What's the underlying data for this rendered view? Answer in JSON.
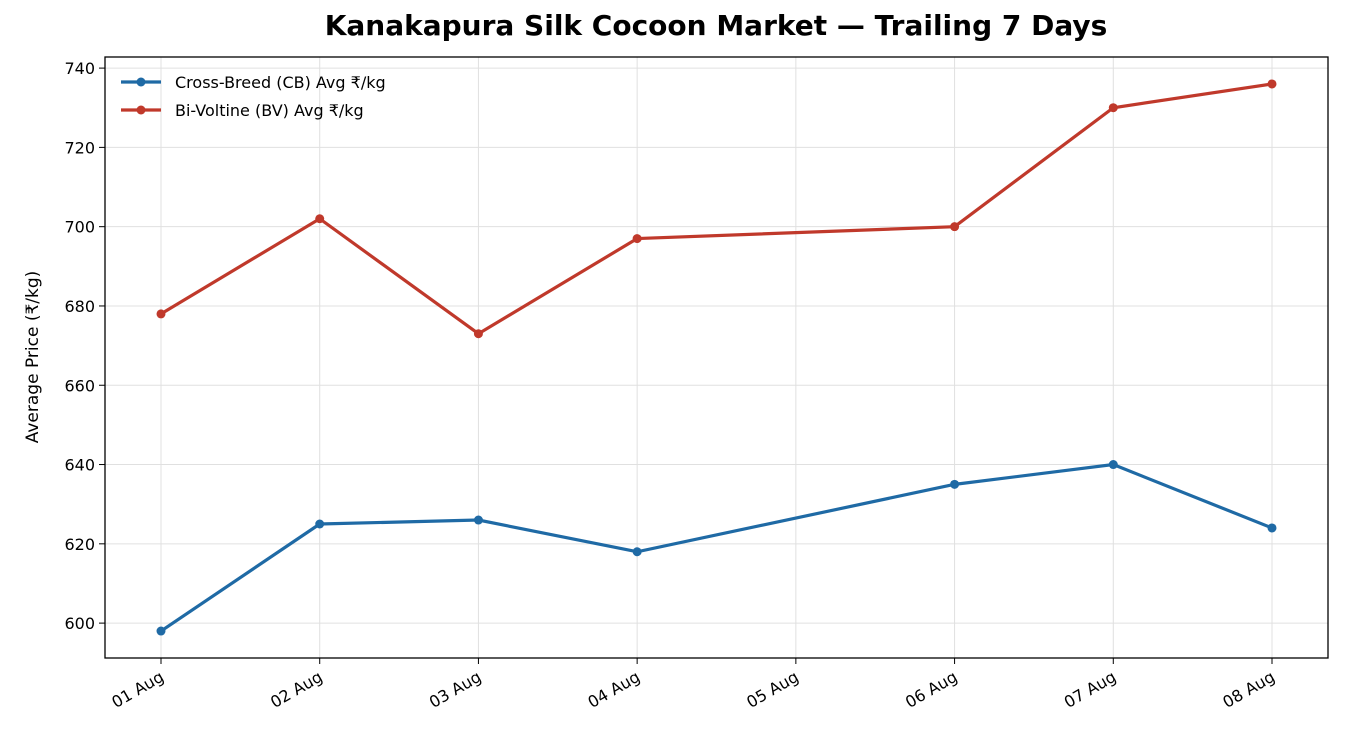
{
  "chart_data": {
    "type": "line",
    "title": "Kanakapura Silk Cocoon Market — Trailing 7 Days",
    "ylabel": "Average Price (₹/kg)",
    "x": [
      "01 Aug",
      "02 Aug",
      "03 Aug",
      "04 Aug",
      "06 Aug",
      "07 Aug",
      "08 Aug"
    ],
    "xticks": [
      "01 Aug",
      "02 Aug",
      "03 Aug",
      "04 Aug",
      "05 Aug",
      "06 Aug",
      "07 Aug",
      "08 Aug"
    ],
    "series": [
      {
        "name": "Cross-Breed (CB) Avg ₹/kg",
        "color": "#1f6aa5",
        "values": [
          598,
          625,
          626,
          618,
          635,
          640,
          624
        ]
      },
      {
        "name": "Bi-Voltine (BV) Avg ₹/kg",
        "color": "#c0392b",
        "values": [
          678,
          702,
          673,
          697,
          700,
          730,
          736
        ]
      }
    ],
    "ylim": [
      591.2,
      742.8
    ],
    "yticks": [
      600,
      620,
      640,
      660,
      680,
      700,
      720,
      740
    ],
    "grid": true,
    "legend": "upper left"
  }
}
